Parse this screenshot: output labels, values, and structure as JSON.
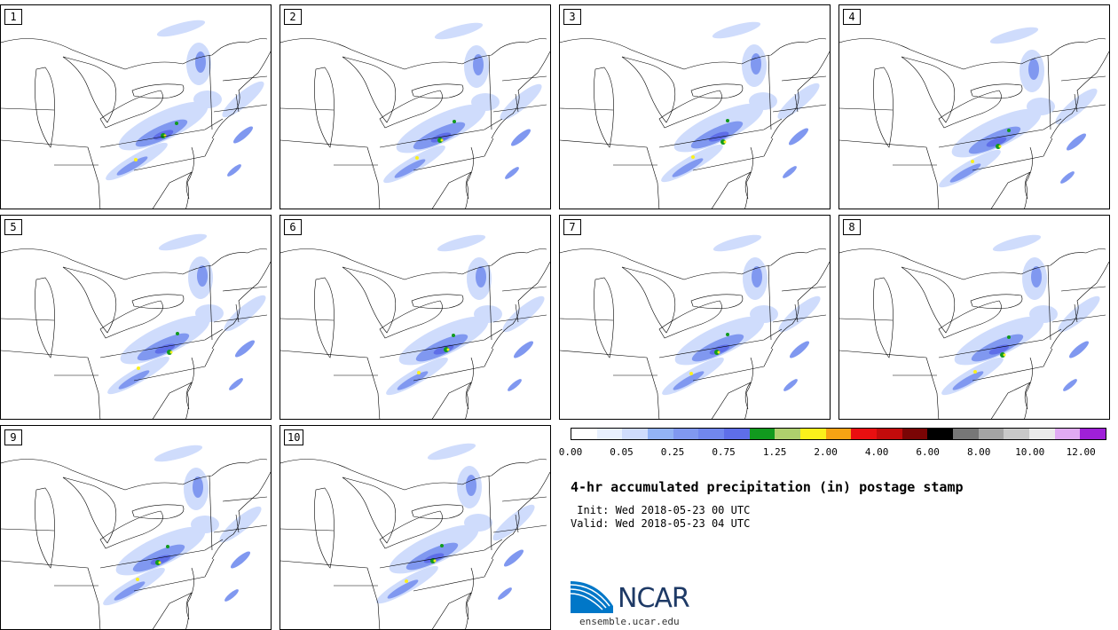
{
  "panels": [
    "1",
    "2",
    "3",
    "4",
    "5",
    "6",
    "7",
    "8",
    "9",
    "10"
  ],
  "colorbar": {
    "colors": [
      "#ffffff",
      "#e8f0fe",
      "#cfdcfc",
      "#93b3f5",
      "#8098f0",
      "#7187ee",
      "#5e6ee8",
      "#119a1e",
      "#aed06d",
      "#fbf11b",
      "#f7a313",
      "#e90f10",
      "#c20b0b",
      "#7a0505",
      "#000000",
      "#777777",
      "#a4a4a4",
      "#c9c9c9",
      "#eaeaea",
      "#e0aaf3",
      "#9f20d8"
    ],
    "tick_labels": [
      "0.00",
      "0.05",
      "0.25",
      "0.75",
      "1.25",
      "2.00",
      "4.00",
      "6.00",
      "8.00",
      "10.00",
      "12.00"
    ]
  },
  "title": "4-hr accumulated precipitation (in) postage stamp",
  "init": " Init: Wed 2018-05-23 00 UTC",
  "valid": "Valid: Wed 2018-05-23 04 UTC",
  "logo": {
    "name": "ncar-logo",
    "text": "NCAR",
    "url": "ensemble.ucar.edu",
    "primary": "#0077c8",
    "dark": "#1e3a66"
  },
  "map_colors": {
    "land_line": "#000000",
    "light_precip": "#cfdcfc",
    "medium_precip": "#8098f0",
    "heavy_precip": "#5e6ee8",
    "green": "#119a1e",
    "yellow": "#fbf11b",
    "orange": "#f7a313"
  }
}
